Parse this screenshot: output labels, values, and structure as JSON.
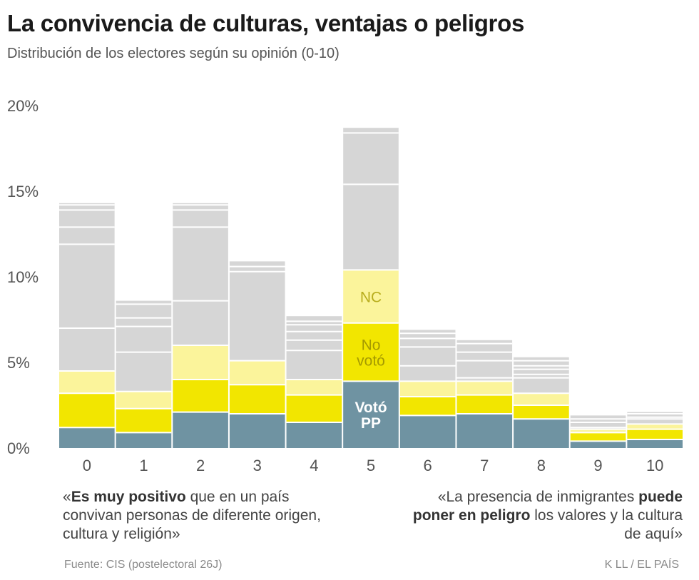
{
  "title": "La convivencia de culturas, ventajas o peligros",
  "subtitle": "Distribución de los electores según su opinión (0-10)",
  "notes": {
    "left_bold": "Es muy positivo",
    "left_rest": " que en un país convivan personas de diferente origen, cultura y religión»",
    "left_open": "«",
    "right_plain": "«La presencia de inmigrantes ",
    "right_bold": "puede poner en peligro",
    "right_rest": " los valores y la cultura de aquí»"
  },
  "source": "Fuente: CIS (postelectoral 26J)",
  "credit": "K LL  /  EL PAÍS",
  "chart_data": {
    "type": "bar",
    "stacked": true,
    "categories": [
      "0",
      "1",
      "2",
      "3",
      "4",
      "5",
      "6",
      "7",
      "8",
      "9",
      "10"
    ],
    "ylim": [
      0,
      20
    ],
    "yticks": [
      0,
      5,
      10,
      15,
      20
    ],
    "ytick_labels": [
      "0%",
      "5%",
      "10%",
      "15%",
      "20%"
    ],
    "series": [
      {
        "name": "Votó PP",
        "color": "#6f93a2",
        "values": [
          1.2,
          0.9,
          2.1,
          2.0,
          1.5,
          3.9,
          1.9,
          2.0,
          1.7,
          0.4,
          0.5
        ]
      },
      {
        "name": "No votó",
        "color": "#f2e600",
        "values": [
          2.0,
          1.4,
          1.9,
          1.7,
          1.6,
          3.4,
          1.1,
          1.1,
          0.8,
          0.5,
          0.6
        ]
      },
      {
        "name": "NC",
        "color": "#fbf49b",
        "values": [
          1.3,
          1.0,
          2.0,
          1.4,
          0.9,
          3.1,
          0.9,
          0.8,
          0.7,
          0.2,
          0.3
        ]
      },
      {
        "name": "",
        "color": "#d6d6d6",
        "values": [
          9.8,
          5.3,
          8.3,
          5.8,
          3.7,
          8.3,
          3.0,
          2.4,
          2.1,
          0.8,
          0.7
        ]
      }
    ],
    "subdivisions": [
      [
        7.0,
        11.9,
        12.9,
        13.9,
        14.2
      ],
      [
        5.6,
        7.1,
        7.6,
        8.4
      ],
      [
        8.6,
        12.9,
        13.9,
        14.2
      ],
      [
        10.3,
        10.6
      ],
      [
        5.7,
        6.3,
        6.8,
        7.2,
        7.4
      ],
      [
        15.4,
        18.4
      ],
      [
        4.8,
        5.9,
        6.4,
        6.7
      ],
      [
        4.1,
        5.1,
        5.6,
        6.1
      ],
      [
        4.1,
        4.3,
        4.6,
        4.8,
        5.1
      ],
      [
        1.2,
        1.5,
        1.7
      ],
      [
        1.7,
        1.8,
        2.0
      ]
    ],
    "inline_labels": {
      "category_index": 5,
      "labels": [
        "Votó PP",
        "No votó",
        "NC"
      ]
    }
  }
}
